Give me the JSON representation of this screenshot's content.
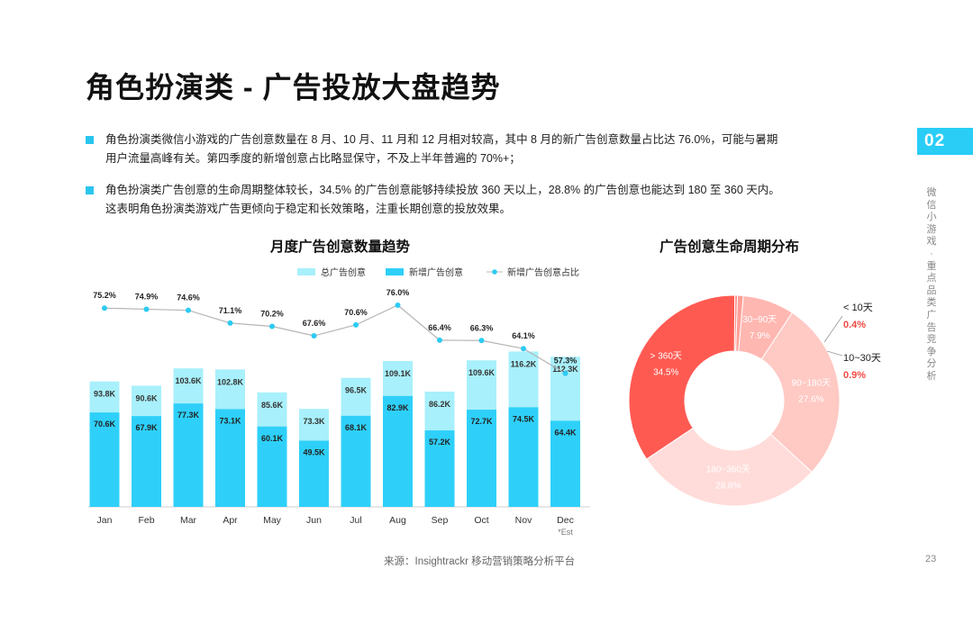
{
  "title": "角色扮演类 - 广告投放大盘趋势",
  "bullets": [
    {
      "line1": "角色扮演类微信小游戏的广告创意数量在 8 月、10 月、11 月和 12 月相对较高，其中 8 月的新广告创意数量占比达 76.0%，可能与暑期",
      "line2": "用户流量高峰有关。第四季度的新增创意占比略显保守，不及上半年普遍的 70%+；"
    },
    {
      "line1": "角色扮演类广告创意的生命周期整体较长，34.5% 的广告创意能够持续投放 360 天以上，28.8% 的广告创意也能达到 180 至 360 天内。",
      "line2": "这表明角色扮演类游戏广告更倾向于稳定和长效策略，注重长期创意的投放效果。"
    }
  ],
  "section_tab": "02",
  "side_text": [
    "微",
    "信",
    "小",
    "游",
    "戏",
    "·",
    "重",
    "点",
    "品",
    "类",
    "广",
    "告",
    "竞",
    "争",
    "分",
    "析"
  ],
  "source": "来源：Insightrackr 移动营销策略分析平台",
  "page_number": "23",
  "colors": {
    "accent": "#29c5ee",
    "total_bar": "#a8f0fb",
    "new_bar": "#2ed0f9",
    "line": "#2ccbf3",
    "donut": [
      "#ff5a52",
      "#ff8a83",
      "#ff9f98",
      "#ffb7b1",
      "#ffc9c4",
      "#ffdcd9"
    ],
    "red_label": "#f04a43"
  },
  "chart_data": [
    {
      "type": "bar",
      "title": "月度广告创意数量趋势",
      "categories": [
        "Jan",
        "Feb",
        "Mar",
        "Apr",
        "May",
        "Jun",
        "Jul",
        "Aug",
        "Sep",
        "Oct",
        "Nov",
        "Dec"
      ],
      "est_note": "*Est",
      "legend": [
        "总广告创意",
        "新增广告创意",
        "新增广告创意占比"
      ],
      "series": [
        {
          "name": "总广告创意",
          "values": [
            93.8,
            90.6,
            103.6,
            102.8,
            85.6,
            73.3,
            96.5,
            109.1,
            86.2,
            109.6,
            116.2,
            112.3
          ],
          "labels": [
            "93.8K",
            "90.6K",
            "103.6K",
            "102.8K",
            "85.6K",
            "73.3K",
            "96.5K",
            "109.1K",
            "86.2K",
            "109.6K",
            "116.2K",
            "112.3K"
          ]
        },
        {
          "name": "新增广告创意",
          "values": [
            70.6,
            67.9,
            77.3,
            73.1,
            60.1,
            49.5,
            68.1,
            82.9,
            57.2,
            72.7,
            74.5,
            64.4
          ],
          "labels": [
            "70.6K",
            "67.9K",
            "77.3K",
            "73.1K",
            "60.1K",
            "49.5K",
            "68.1K",
            "82.9K",
            "57.2K",
            "72.7K",
            "74.5K",
            "64.4K"
          ]
        },
        {
          "name": "新增广告创意占比",
          "values": [
            75.2,
            74.9,
            74.6,
            71.1,
            70.2,
            67.6,
            70.6,
            76.0,
            66.4,
            66.3,
            64.1,
            57.3
          ],
          "labels": [
            "75.2%",
            "74.9%",
            "74.6%",
            "71.1%",
            "70.2%",
            "67.6%",
            "70.6%",
            "76.0%",
            "66.4%",
            "66.3%",
            "64.1%",
            "57.3%"
          ]
        }
      ],
      "ylim": [
        0,
        125
      ]
    },
    {
      "type": "pie",
      "title": "广告创意生命周期分布",
      "slices": [
        {
          "name": "> 360天",
          "value": 34.5,
          "label": "34.5%"
        },
        {
          "name": "< 10天",
          "value": 0.4,
          "label": "0.4%"
        },
        {
          "name": "10~30天",
          "value": 0.9,
          "label": "0.9%"
        },
        {
          "name": "30~90天",
          "value": 7.9,
          "label": "7.9%"
        },
        {
          "name": "90~180天",
          "value": 27.6,
          "label": "27.6%"
        },
        {
          "name": "180~360天",
          "value": 28.8,
          "label": "28.8%"
        }
      ]
    }
  ]
}
